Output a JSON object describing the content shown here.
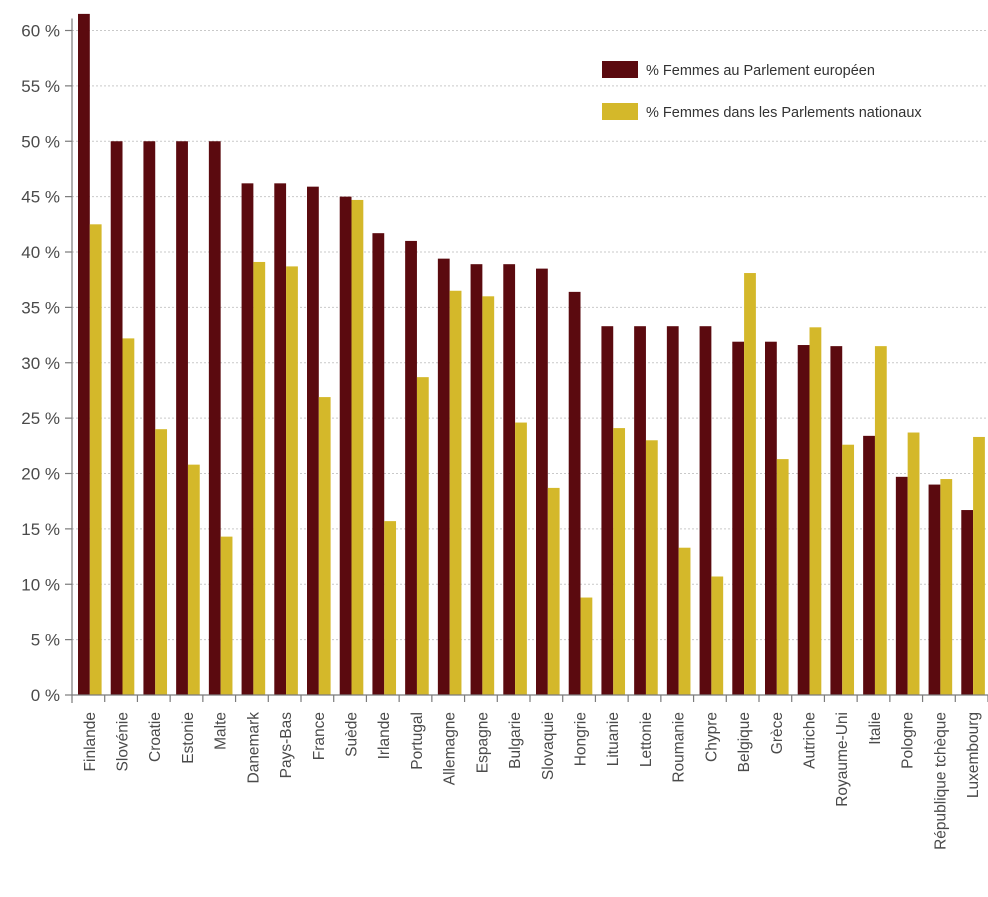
{
  "chart_data": {
    "type": "bar",
    "title": "",
    "xlabel": "",
    "ylabel": "",
    "ylim": [
      0,
      62
    ],
    "yticks": [
      0,
      5,
      10,
      15,
      20,
      25,
      30,
      35,
      40,
      45,
      50,
      55,
      60
    ],
    "ytick_labels": [
      "0 %",
      "5 %",
      "10 %",
      "15 %",
      "20 %",
      "25 %",
      "30 %",
      "35 %",
      "40 %",
      "45 %",
      "50 %",
      "55 %",
      "60 %"
    ],
    "grid": true,
    "legend_position": "top-right",
    "categories": [
      "Finlande",
      "Slovénie",
      "Croatie",
      "Estonie",
      "Malte",
      "Danemark",
      "Pays-Bas",
      "France",
      "Suède",
      "Irlande",
      "Portugal",
      "Allemagne",
      "Espagne",
      "Bulgarie",
      "Slovaquie",
      "Hongrie",
      "Lituanie",
      "Lettonie",
      "Roumanie",
      "Chypre",
      "Belgique",
      "Grèce",
      "Autriche",
      "Royaume-Uni",
      "Italie",
      "Pologne",
      "République tchèque",
      "Luxembourg"
    ],
    "series": [
      {
        "name": "% Femmes au Parlement européen",
        "color": "#5b0a0f",
        "values": [
          61.5,
          50.0,
          50.0,
          50.0,
          50.0,
          46.2,
          46.2,
          45.9,
          45.0,
          41.7,
          41.0,
          39.4,
          38.9,
          38.9,
          38.5,
          36.4,
          33.3,
          33.3,
          33.3,
          33.3,
          31.9,
          31.9,
          31.6,
          31.5,
          23.4,
          19.7,
          19.0,
          16.7
        ]
      },
      {
        "name": "% Femmes dans les Parlements nationaux",
        "color": "#d4b82a",
        "values": [
          42.5,
          32.2,
          24.0,
          20.8,
          14.3,
          39.1,
          38.7,
          26.9,
          44.7,
          15.7,
          28.7,
          36.5,
          36.0,
          24.6,
          18.7,
          8.8,
          24.1,
          23.0,
          13.3,
          10.7,
          38.1,
          21.3,
          33.2,
          22.6,
          31.5,
          23.7,
          19.5,
          23.3
        ]
      }
    ]
  }
}
